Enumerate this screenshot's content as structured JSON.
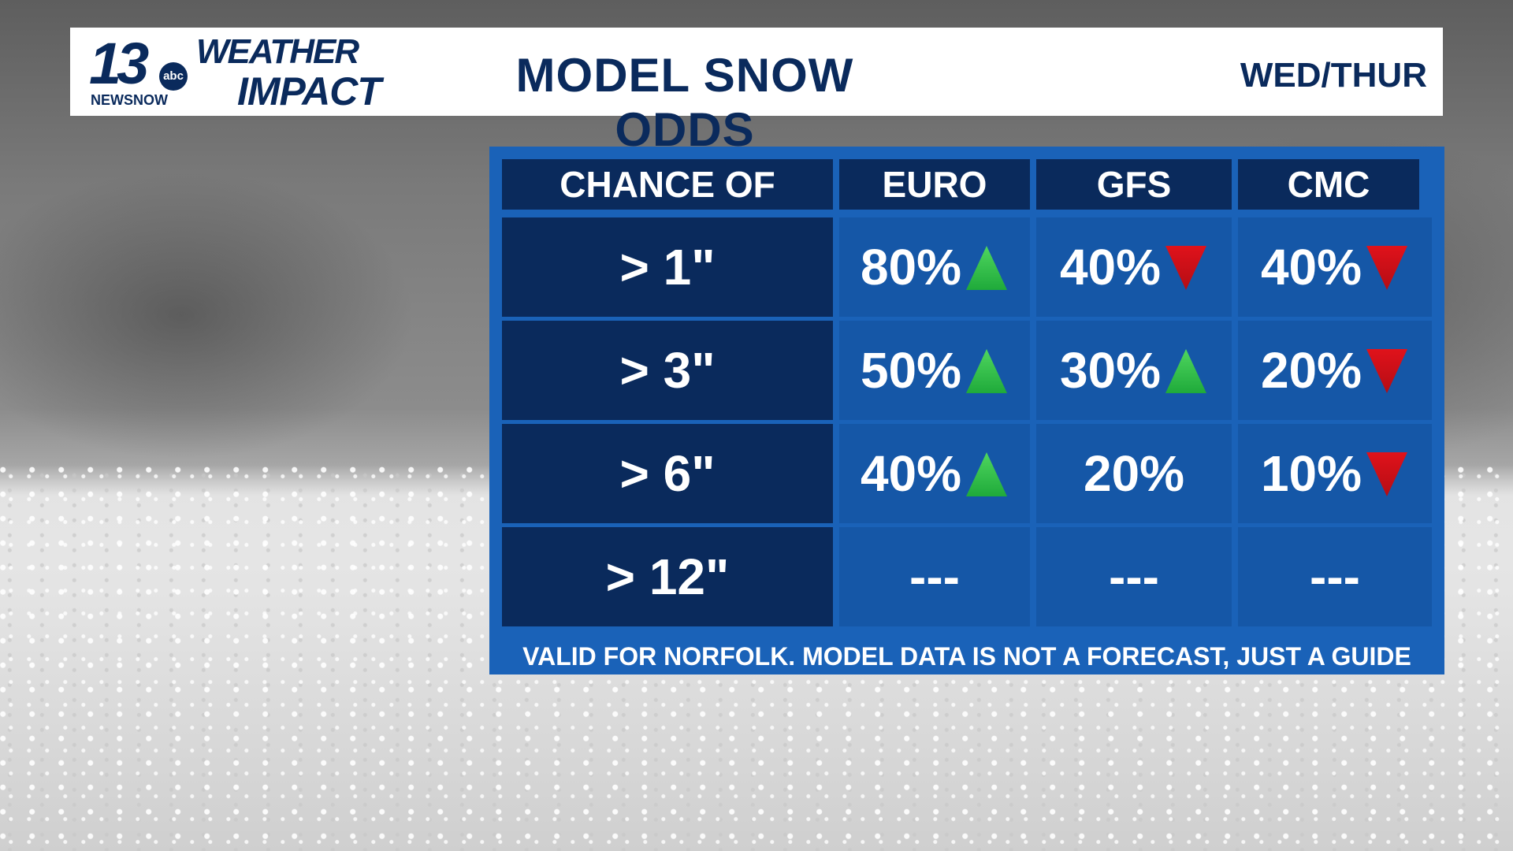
{
  "header": {
    "logo_number": "13",
    "logo_badge": "abc",
    "logo_newsnow": "NEWSNOW",
    "brand_line1": "WEATHER",
    "brand_line2": "IMPACT",
    "title": "MODEL SNOW ODDS",
    "days": "WED/THUR"
  },
  "table": {
    "columns": [
      "CHANCE OF",
      "EURO",
      "GFS",
      "CMC"
    ],
    "rows": [
      {
        "label": "> 1\"",
        "cells": [
          {
            "value": "80%",
            "trend": "up"
          },
          {
            "value": "40%",
            "trend": "down"
          },
          {
            "value": "40%",
            "trend": "down"
          }
        ]
      },
      {
        "label": "> 3\"",
        "cells": [
          {
            "value": "50%",
            "trend": "up"
          },
          {
            "value": "30%",
            "trend": "up"
          },
          {
            "value": "20%",
            "trend": "down"
          }
        ]
      },
      {
        "label": "> 6\"",
        "cells": [
          {
            "value": "40%",
            "trend": "up"
          },
          {
            "value": "20%",
            "trend": "none"
          },
          {
            "value": "10%",
            "trend": "down"
          }
        ]
      },
      {
        "label": "> 12\"",
        "cells": [
          {
            "value": "---",
            "trend": "none"
          },
          {
            "value": "---",
            "trend": "none"
          },
          {
            "value": "---",
            "trend": "none"
          }
        ]
      }
    ],
    "footer": "VALID FOR NORFOLK. MODEL DATA IS NOT A FORECAST, JUST A GUIDE"
  },
  "colors": {
    "navy": "#0a2a5c",
    "cell_blue": "#1557a7",
    "frame_blue": "#1a62b8",
    "trend_up": "#1faa3a",
    "trend_down": "#e0121b"
  }
}
